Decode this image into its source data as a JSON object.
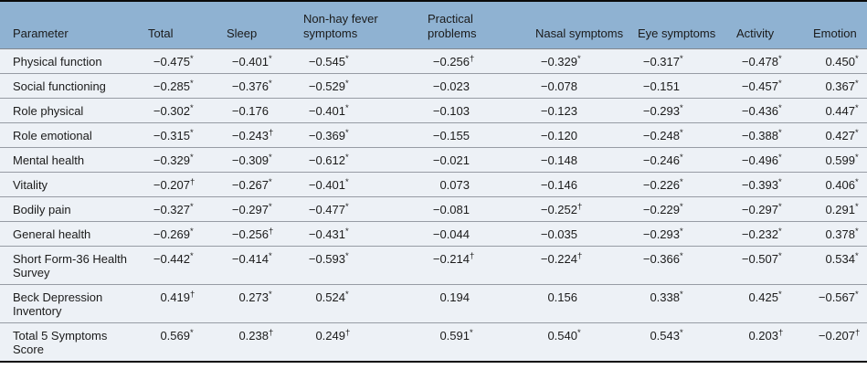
{
  "colors": {
    "header_bg": "#8fb2d2",
    "row_bg": "#edf1f6",
    "frame_border": "#0a0a0a",
    "row_divider": "#979ca4",
    "text": "#1b1b1b"
  },
  "table": {
    "columns": [
      "Parameter",
      "Total",
      "Sleep",
      "Non-hay fever symptoms",
      "Practical problems",
      "Nasal symptoms",
      "Eye symptoms",
      "Activity",
      "Emotion"
    ],
    "rows": [
      {
        "param": "Physical function",
        "cells": [
          {
            "v": "−0.475",
            "s": "*"
          },
          {
            "v": "−0.401",
            "s": "*"
          },
          {
            "v": "−0.545",
            "s": "*"
          },
          {
            "v": "−0.256",
            "s": "†"
          },
          {
            "v": "−0.329",
            "s": "*"
          },
          {
            "v": "−0.317",
            "s": "*"
          },
          {
            "v": "−0.478",
            "s": "*"
          },
          {
            "v": "0.450",
            "s": "*"
          }
        ]
      },
      {
        "param": "Social functioning",
        "cells": [
          {
            "v": "−0.285",
            "s": "*"
          },
          {
            "v": "−0.376",
            "s": "*"
          },
          {
            "v": "−0.529",
            "s": "*"
          },
          {
            "v": "−0.023",
            "s": ""
          },
          {
            "v": "−0.078",
            "s": ""
          },
          {
            "v": "−0.151",
            "s": ""
          },
          {
            "v": "−0.457",
            "s": "*"
          },
          {
            "v": "0.367",
            "s": "*"
          }
        ]
      },
      {
        "param": "Role physical",
        "cells": [
          {
            "v": "−0.302",
            "s": "*"
          },
          {
            "v": "−0.176",
            "s": ""
          },
          {
            "v": "−0.401",
            "s": "*"
          },
          {
            "v": "−0.103",
            "s": ""
          },
          {
            "v": "−0.123",
            "s": ""
          },
          {
            "v": "−0.293",
            "s": "*"
          },
          {
            "v": "−0.436",
            "s": "*"
          },
          {
            "v": "0.447",
            "s": "*"
          }
        ]
      },
      {
        "param": "Role emotional",
        "cells": [
          {
            "v": "−0.315",
            "s": "*"
          },
          {
            "v": "−0.243",
            "s": "†"
          },
          {
            "v": "−0.369",
            "s": "*"
          },
          {
            "v": "−0.155",
            "s": ""
          },
          {
            "v": "−0.120",
            "s": ""
          },
          {
            "v": "−0.248",
            "s": "*"
          },
          {
            "v": "−0.388",
            "s": "*"
          },
          {
            "v": "0.427",
            "s": "*"
          }
        ]
      },
      {
        "param": "Mental health",
        "cells": [
          {
            "v": "−0.329",
            "s": "*"
          },
          {
            "v": "−0.309",
            "s": "*"
          },
          {
            "v": "−0.612",
            "s": "*"
          },
          {
            "v": "−0.021",
            "s": ""
          },
          {
            "v": "−0.148",
            "s": ""
          },
          {
            "v": "−0.246",
            "s": "*"
          },
          {
            "v": "−0.496",
            "s": "*"
          },
          {
            "v": "0.599",
            "s": "*"
          }
        ]
      },
      {
        "param": "Vitality",
        "cells": [
          {
            "v": "−0.207",
            "s": "†"
          },
          {
            "v": "−0.267",
            "s": "*"
          },
          {
            "v": "−0.401",
            "s": "*"
          },
          {
            "v": "0.073",
            "s": ""
          },
          {
            "v": "−0.146",
            "s": ""
          },
          {
            "v": "−0.226",
            "s": "*"
          },
          {
            "v": "−0.393",
            "s": "*"
          },
          {
            "v": "0.406",
            "s": "*"
          }
        ]
      },
      {
        "param": "Bodily pain",
        "cells": [
          {
            "v": "−0.327",
            "s": "*"
          },
          {
            "v": "−0.297",
            "s": "*"
          },
          {
            "v": "−0.477",
            "s": "*"
          },
          {
            "v": "−0.081",
            "s": ""
          },
          {
            "v": "−0.252",
            "s": "†"
          },
          {
            "v": "−0.229",
            "s": "*"
          },
          {
            "v": "−0.297",
            "s": "*"
          },
          {
            "v": "0.291",
            "s": "*"
          }
        ]
      },
      {
        "param": "General health",
        "cells": [
          {
            "v": "−0.269",
            "s": "*"
          },
          {
            "v": "−0.256",
            "s": "†"
          },
          {
            "v": "−0.431",
            "s": "*"
          },
          {
            "v": "−0.044",
            "s": ""
          },
          {
            "v": "−0.035",
            "s": ""
          },
          {
            "v": "−0.293",
            "s": "*"
          },
          {
            "v": "−0.232",
            "s": "*"
          },
          {
            "v": "0.378",
            "s": "*"
          }
        ]
      },
      {
        "param": "Short Form-36 Health Survey",
        "cells": [
          {
            "v": "−0.442",
            "s": "*"
          },
          {
            "v": "−0.414",
            "s": "*"
          },
          {
            "v": "−0.593",
            "s": "*"
          },
          {
            "v": "−0.214",
            "s": "†"
          },
          {
            "v": "−0.224",
            "s": "†"
          },
          {
            "v": "−0.366",
            "s": "*"
          },
          {
            "v": "−0.507",
            "s": "*"
          },
          {
            "v": "0.534",
            "s": "*"
          }
        ]
      },
      {
        "param": "Beck Depression Inventory",
        "cells": [
          {
            "v": "0.419",
            "s": "†"
          },
          {
            "v": "0.273",
            "s": "*"
          },
          {
            "v": "0.524",
            "s": "*"
          },
          {
            "v": "0.194",
            "s": ""
          },
          {
            "v": "0.156",
            "s": ""
          },
          {
            "v": "0.338",
            "s": "*"
          },
          {
            "v": "0.425",
            "s": "*"
          },
          {
            "v": "−0.567",
            "s": "*"
          }
        ]
      },
      {
        "param": "Total 5 Symptoms Score",
        "cells": [
          {
            "v": "0.569",
            "s": "*"
          },
          {
            "v": "0.238",
            "s": "†"
          },
          {
            "v": "0.249",
            "s": "†"
          },
          {
            "v": "0.591",
            "s": "*"
          },
          {
            "v": "0.540",
            "s": "*"
          },
          {
            "v": "0.543",
            "s": "*"
          },
          {
            "v": "0.203",
            "s": "†"
          },
          {
            "v": "−0.207",
            "s": "†"
          }
        ]
      }
    ]
  }
}
